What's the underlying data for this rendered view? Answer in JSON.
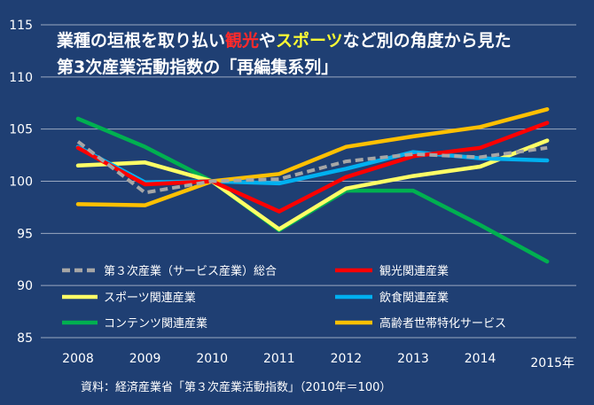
{
  "chart_data": {
    "type": "line",
    "title": {
      "line1_segments": [
        {
          "text": "業種の垣根を取り払い",
          "color": "#ffffff"
        },
        {
          "text": "観光",
          "color": "#ff2a2a"
        },
        {
          "text": "や",
          "color": "#ffffff"
        },
        {
          "text": "スポーツ",
          "color": "#ffff33"
        },
        {
          "text": "など別の角度から見た",
          "color": "#ffffff"
        }
      ],
      "line2": "第3次産業活動指数の「再編集系列」"
    },
    "x": [
      "2008",
      "2009",
      "2010",
      "2011",
      "2012",
      "2013",
      "2014",
      "2015年"
    ],
    "ylim": [
      85,
      115
    ],
    "yticks": [
      "85",
      "90",
      "95",
      "100",
      "105",
      "110",
      "115"
    ],
    "xlabel": "",
    "ylabel": "",
    "series": [
      {
        "name": "第３次産業（サービス産業）総合",
        "color": "#a6a6a6",
        "dashed": true,
        "values": [
          103.8,
          98.9,
          100.0,
          100.2,
          101.9,
          102.6,
          102.3,
          103.2
        ]
      },
      {
        "name": "観光関連産業",
        "color": "#ff0000",
        "dashed": false,
        "values": [
          103.2,
          99.7,
          100.0,
          97.1,
          100.4,
          102.4,
          103.2,
          105.6
        ]
      },
      {
        "name": "スポーツ関連産業",
        "color": "#ffff66",
        "dashed": false,
        "values": [
          101.5,
          101.8,
          100.0,
          95.4,
          99.3,
          100.5,
          101.4,
          103.9
        ]
      },
      {
        "name": "飲食関連産業",
        "color": "#00b0f0",
        "dashed": false,
        "values": [
          103.3,
          99.9,
          100.0,
          99.8,
          101.2,
          102.8,
          102.2,
          102.0
        ]
      },
      {
        "name": "コンテンツ関連産業",
        "color": "#00b050",
        "dashed": false,
        "values": [
          106.0,
          103.3,
          100.0,
          95.3,
          99.1,
          99.1,
          95.8,
          92.3
        ]
      },
      {
        "name": "高齢者世帯特化サービス",
        "color": "#ffc000",
        "dashed": false,
        "values": [
          97.8,
          97.7,
          100.0,
          100.7,
          103.3,
          104.3,
          105.2,
          106.9
        ]
      }
    ],
    "source": "資料：経済産業省「第３次産業活動指数」（2010年＝100）",
    "grid": true,
    "legend_position": "bottom"
  }
}
